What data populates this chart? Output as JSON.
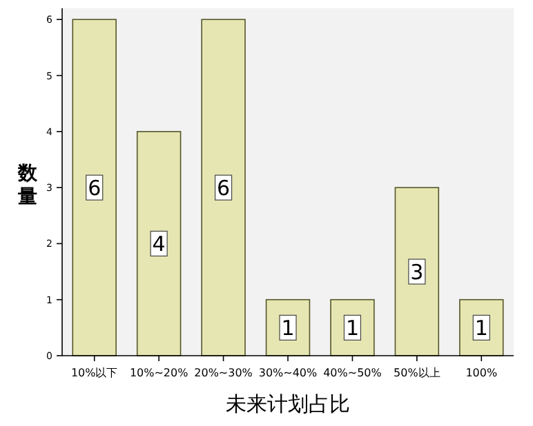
{
  "chart_data": {
    "type": "bar",
    "xlabel": "未来计划占比",
    "ylabel": "数量",
    "categories": [
      "10%以下",
      "10%~20%",
      "20%~30%",
      "30%~40%",
      "40%~50%",
      "50%以上",
      "100%"
    ],
    "values": [
      6,
      4,
      6,
      1,
      1,
      3,
      1
    ],
    "color": "#e6e6b2",
    "ylim": [
      0,
      6.2
    ],
    "yticks": [
      0,
      1,
      2,
      3,
      4,
      5,
      6
    ],
    "data_labels": true
  }
}
